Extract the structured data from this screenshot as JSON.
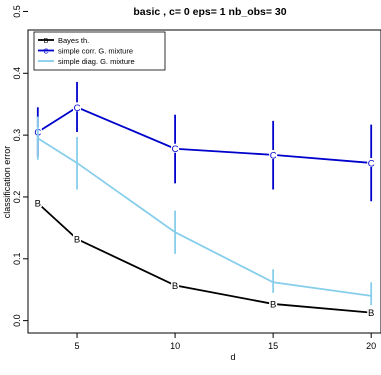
{
  "chart_data": {
    "type": "line",
    "title": "basic , c= 0 eps= 1 nb_obs= 30",
    "xlabel": "d",
    "ylabel": "classification error",
    "xlim": [
      2.5,
      20.5
    ],
    "ylim": [
      -0.02,
      0.47
    ],
    "x_ticks": [
      "5",
      "10",
      "15",
      "20"
    ],
    "y_ticks": [
      "0.0",
      "0.1",
      "0.2",
      "0.3",
      "0.4",
      "0.5"
    ],
    "grid": false,
    "legend_position": "top-left",
    "series": [
      {
        "name": "Bayes th.",
        "color": "#000000",
        "marker": "B",
        "x": [
          3,
          5,
          10,
          15,
          20
        ],
        "y": [
          0.19,
          0.132,
          0.057,
          0.027,
          0.013
        ],
        "err_low": null,
        "err_high": null
      },
      {
        "name": "simple corr. G. mixture",
        "color": "#0000cd",
        "marker": "C",
        "x": [
          3,
          5,
          10,
          15,
          20
        ],
        "y": [
          0.305,
          0.345,
          0.278,
          0.268,
          0.255
        ],
        "err_low": [
          0.265,
          0.305,
          0.222,
          0.212,
          0.193
        ],
        "err_high": [
          0.345,
          0.386,
          0.333,
          0.323,
          0.317
        ]
      },
      {
        "name": "simple diag. G. mixture",
        "color": "#87ceeb",
        "marker": "",
        "x": [
          3,
          5,
          10,
          15,
          20
        ],
        "y": [
          0.295,
          0.255,
          0.143,
          0.062,
          0.04
        ],
        "err_low": [
          0.26,
          0.212,
          0.108,
          0.045,
          0.025
        ],
        "err_high": [
          0.33,
          0.297,
          0.178,
          0.083,
          0.062
        ]
      }
    ]
  }
}
